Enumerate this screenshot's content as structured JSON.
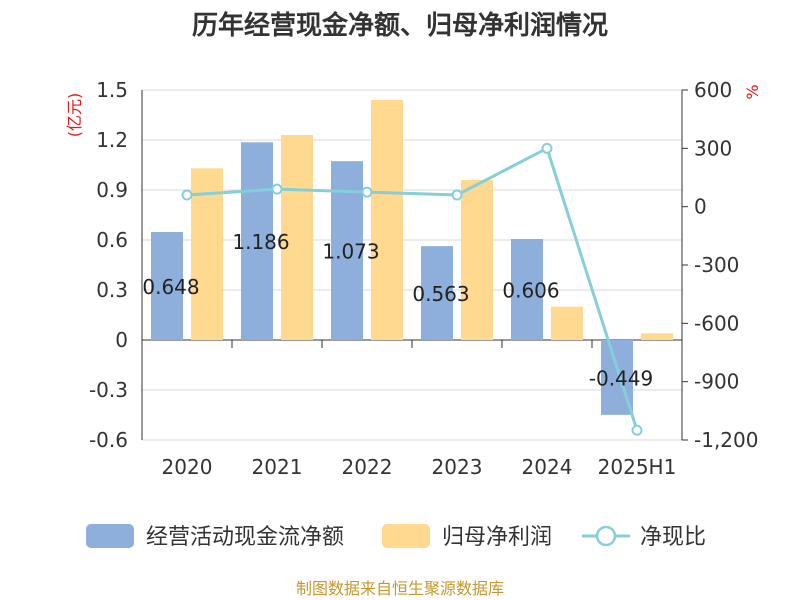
{
  "chart_data": {
    "type": "bar",
    "title": "历年经营现金净额、归母净利润情况",
    "y_left_unit": "(亿元)",
    "y_right_unit": "%",
    "categories": [
      "2020",
      "2021",
      "2022",
      "2023",
      "2024",
      "2025H1"
    ],
    "y_left_ticks": [
      "1.5",
      "1.2",
      "0.9",
      "0.6",
      "0.3",
      "0",
      "-0.3",
      "-0.6"
    ],
    "y_right_ticks": [
      "600",
      "300",
      "0",
      "-300",
      "-600",
      "-900",
      "-1,200"
    ],
    "ylim_left": [
      -0.6,
      1.5
    ],
    "ylim_right": [
      -1200,
      600
    ],
    "series": [
      {
        "name": "经营活动现金流净额",
        "kind": "bar",
        "axis": "left",
        "color": "#8eaedc",
        "values": [
          0.648,
          1.186,
          1.073,
          0.563,
          0.606,
          -0.449
        ],
        "labels": [
          "0.648",
          "1.186",
          "1.073",
          "0.563",
          "0.606",
          "-0.449"
        ]
      },
      {
        "name": "归母净利润",
        "kind": "bar",
        "axis": "left",
        "color": "#ffd990",
        "values": [
          1.03,
          1.23,
          1.44,
          0.96,
          0.2,
          0.04
        ]
      },
      {
        "name": "净现比",
        "kind": "line",
        "axis": "right",
        "color": "#86cfd8",
        "values": [
          60,
          90,
          75,
          60,
          300,
          -1150
        ]
      }
    ],
    "legend_position": "bottom",
    "source": "制图数据来自恒生聚源数据库"
  }
}
